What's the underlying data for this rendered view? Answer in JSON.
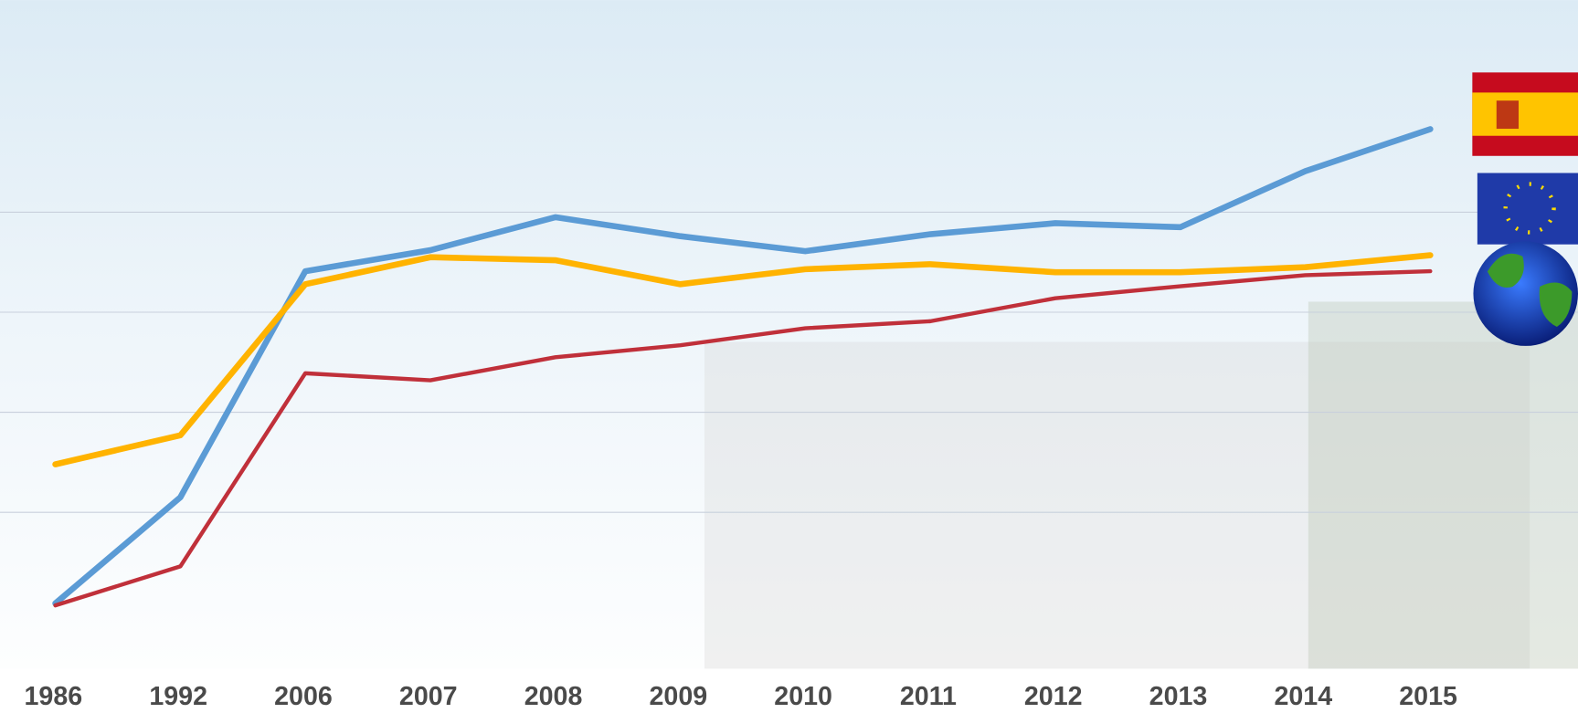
{
  "chart_data": {
    "type": "line",
    "categories": [
      "1986",
      "1992",
      "2006",
      "2007",
      "2008",
      "2009",
      "2010",
      "2011",
      "2012",
      "2013",
      "2014",
      "2015"
    ],
    "series": [
      {
        "color": "#5b9bd5",
        "values": [
          0.09,
          1.15,
          3.41,
          3.62,
          3.95,
          3.76,
          3.61,
          3.78,
          3.89,
          3.85,
          4.41,
          4.83
        ]
      },
      {
        "color": "#ffb300",
        "values": [
          1.48,
          1.77,
          3.28,
          3.55,
          3.52,
          3.28,
          3.43,
          3.48,
          3.4,
          3.4,
          3.45,
          3.57
        ]
      },
      {
        "color": "#c0303a",
        "values": [
          0.07,
          0.46,
          2.39,
          2.32,
          2.55,
          2.67,
          2.84,
          2.91,
          3.14,
          3.26,
          3.37,
          3.41
        ]
      }
    ],
    "ylim": [
      -0.6,
      6.1
    ],
    "yticks": [
      1,
      2,
      3,
      4
    ],
    "grid": true
  }
}
